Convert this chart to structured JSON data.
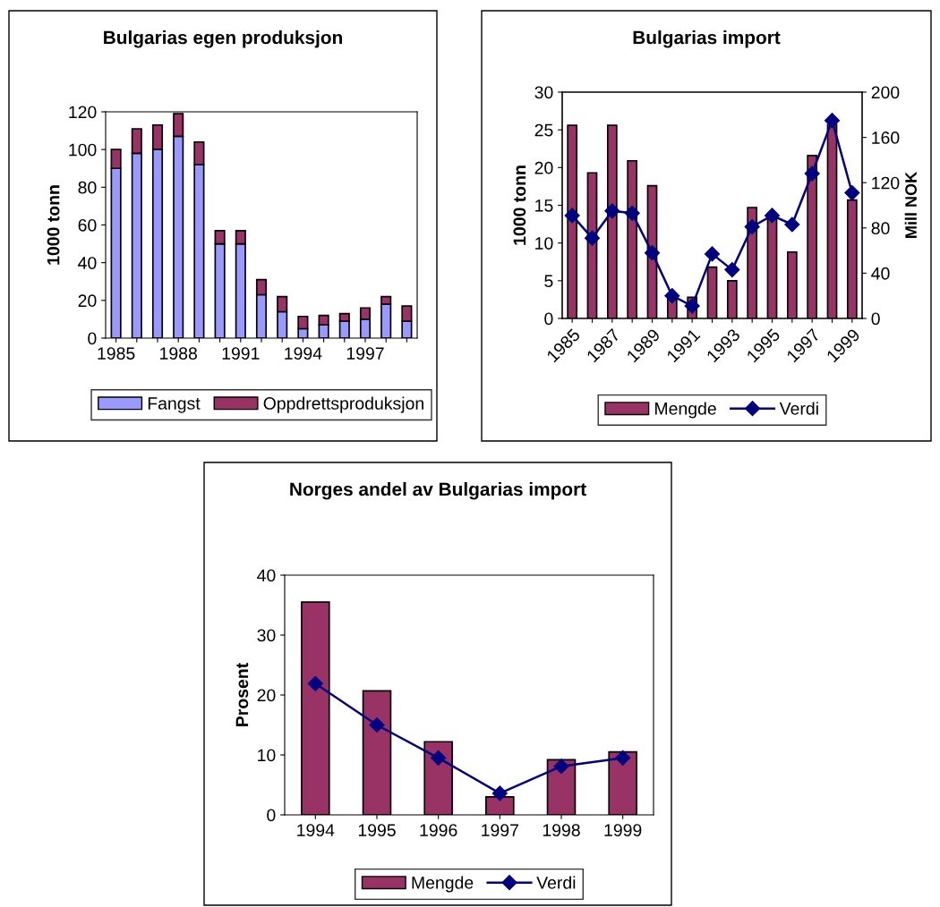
{
  "chart_data": [
    {
      "type": "bar",
      "title": "Bulgarias egen produksjon",
      "ylabel": "1000 tonn",
      "stacked": true,
      "categories": [
        "1985",
        null,
        null,
        "1988",
        null,
        null,
        "1991",
        null,
        null,
        "1994",
        null,
        null,
        "1997",
        null,
        null
      ],
      "series": [
        {
          "name": "Fangst",
          "color": "#9999ff",
          "values": [
            90,
            98,
            100,
            107,
            92,
            50,
            50,
            23,
            14,
            5,
            7,
            9,
            10,
            18,
            9
          ]
        },
        {
          "name": "Oppdrettsproduksjon",
          "color": "#993366",
          "values": [
            10,
            13,
            13,
            12,
            12,
            7,
            7,
            8,
            8,
            6.5,
            5,
            4,
            6,
            4,
            8
          ]
        }
      ],
      "ylim": [
        0,
        120
      ],
      "yticks": [
        0,
        20,
        40,
        60,
        80,
        100,
        120
      ],
      "grid": false,
      "legend": "bottom"
    },
    {
      "type": "bar",
      "title": "Bulgarias import",
      "ylabel": "1000 tonn",
      "y2label": "Mill NOK",
      "categories": [
        "1985",
        null,
        "1987",
        null,
        "1989",
        null,
        "1991",
        null,
        "1993",
        null,
        "1995",
        null,
        "1997",
        null,
        "1999"
      ],
      "series": [
        {
          "name": "Mengde",
          "color": "#993366",
          "values": [
            25.6,
            19.3,
            25.6,
            20.9,
            17.6,
            3,
            2.8,
            6.8,
            5,
            14.7,
            13.6,
            8.8,
            21.6,
            25.7,
            15.7
          ]
        },
        {
          "name": "Verdi",
          "type": "line",
          "axis": "y2",
          "color": "#000080",
          "marker": "diamond",
          "values": [
            91,
            71,
            95,
            93,
            58,
            20,
            11,
            57,
            43,
            81,
            91,
            83,
            128,
            175,
            111
          ]
        }
      ],
      "ylim": [
        0,
        30
      ],
      "yticks": [
        0,
        5,
        10,
        15,
        20,
        25,
        30
      ],
      "y2lim": [
        0,
        200
      ],
      "y2ticks": [
        0,
        40,
        80,
        120,
        160,
        200
      ],
      "grid": false,
      "legend": "bottom"
    },
    {
      "type": "bar",
      "title": "Norges andel av Bulgarias import",
      "ylabel": "Prosent",
      "categories": [
        "1994",
        "1995",
        "1996",
        "1997",
        "1998",
        "1999"
      ],
      "series": [
        {
          "name": "Mengde",
          "color": "#993366",
          "values": [
            35.5,
            20.7,
            12.2,
            3.0,
            9.2,
            10.5
          ]
        },
        {
          "name": "Verdi",
          "type": "line",
          "color": "#000080",
          "marker": "diamond",
          "values": [
            21.9,
            15.0,
            9.5,
            3.6,
            8.1,
            9.5
          ]
        }
      ],
      "ylim": [
        0,
        40
      ],
      "yticks": [
        0,
        10,
        20,
        30,
        40
      ],
      "grid": false,
      "legend": "bottom"
    }
  ]
}
